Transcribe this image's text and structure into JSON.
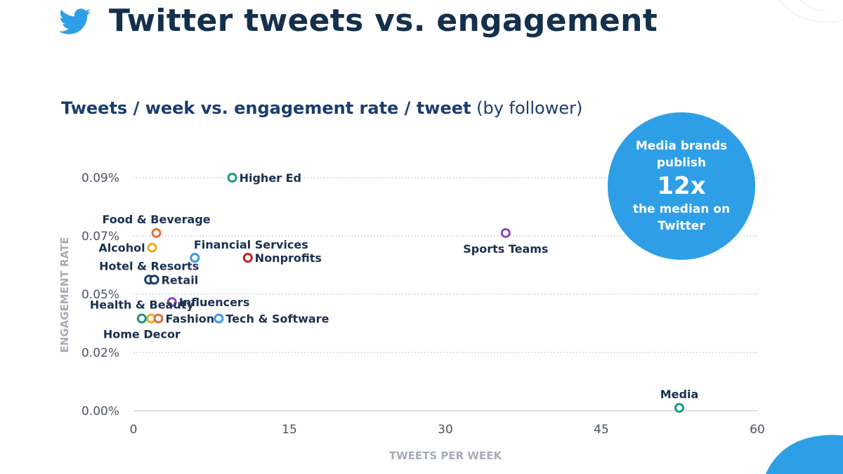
{
  "header": {
    "title": "Twitter tweets vs. engagement",
    "logo_icon": "twitter-bird-icon"
  },
  "callout": {
    "line1": "Media brands",
    "line2": "publish",
    "big": "12x",
    "line3": "the median on",
    "line4": "Twitter"
  },
  "colors": {
    "title": "#14304d",
    "accent_blue": "#2e9fe6",
    "teal": "#1a9985",
    "orange": "#e56b33",
    "yellow": "#f4a81d",
    "red": "#c0202a",
    "purple": "#8e44c4",
    "navy": "#1a3d6e",
    "light_blue": "#3a97e8"
  },
  "chart_data": {
    "type": "scatter",
    "title": "Tweets / week vs. engagement rate / tweet",
    "title_suffix": "(by follower)",
    "xlabel": "TWEETS PER WEEK",
    "ylabel": "ENGAGEMENT RATE",
    "xlim": [
      0,
      60
    ],
    "ylim": [
      0,
      0.09
    ],
    "x_ticks": [
      0,
      15,
      30,
      45,
      60
    ],
    "x_tick_labels": [
      "0",
      "15",
      "30",
      "45",
      "60"
    ],
    "y_ticks": [
      0,
      0.02,
      0.05,
      0.07,
      0.09
    ],
    "y_tick_labels": [
      "0.00%",
      "0.02%",
      "0.05%",
      "0.07%",
      "0.09%"
    ],
    "grid": "horizontal-dotted",
    "points": [
      {
        "label": "Higher Ed",
        "x": 9.5,
        "y": 0.09,
        "color": "#1a9985",
        "label_pos": "right"
      },
      {
        "label": "Food & Beverage",
        "x": 2.2,
        "y": 0.071,
        "color": "#e56b33",
        "label_pos": "above"
      },
      {
        "label": "Alcohol",
        "x": 1.8,
        "y": 0.066,
        "color": "#f4a81d",
        "label_pos": "left"
      },
      {
        "label": "Financial Services",
        "x": 5.9,
        "y": 0.0625,
        "color": "#3a97e8",
        "label_pos": "above-right"
      },
      {
        "label": "Nonprofits",
        "x": 11,
        "y": 0.0625,
        "color": "#c0202a",
        "label_pos": "right"
      },
      {
        "label": "Hotel & Resorts",
        "x": 1.5,
        "y": 0.055,
        "color": "#1a3d6e",
        "label_pos": "above"
      },
      {
        "label": "Retail",
        "x": 2.0,
        "y": 0.055,
        "color": "#1a3d6e",
        "label_pos": "right"
      },
      {
        "label": "Influencers",
        "x": 3.7,
        "y": 0.046,
        "color": "#8e44c4",
        "label_pos": "right"
      },
      {
        "label": "Health & Beauty",
        "x": 0.8,
        "y": 0.0375,
        "color": "#1a9985",
        "label_pos": "above"
      },
      {
        "label": "",
        "x": 1.7,
        "y": 0.0375,
        "color": "#f4a81d",
        "label_pos": "none"
      },
      {
        "label": "Fashion",
        "x": 2.4,
        "y": 0.0375,
        "color": "#e56b33",
        "label_pos": "right"
      },
      {
        "label": "Tech & Software",
        "x": 8.2,
        "y": 0.0375,
        "color": "#3a97e8",
        "label_pos": "right"
      },
      {
        "label": "Home Decor",
        "x": 0.8,
        "y": 0.0375,
        "color": "#1a9985",
        "label_pos": "below"
      },
      {
        "label": "Sports Teams",
        "x": 35.8,
        "y": 0.071,
        "color": "#8e44c4",
        "label_pos": "below"
      },
      {
        "label": "Media",
        "x": 52.5,
        "y": 0.001,
        "color": "#1a9985",
        "label_pos": "above"
      }
    ]
  }
}
